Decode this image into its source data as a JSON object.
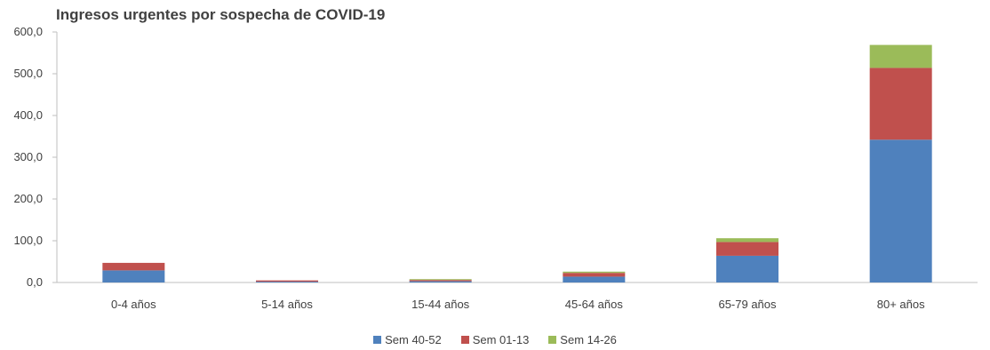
{
  "chart_data": {
    "type": "bar",
    "stacked": true,
    "title": "Ingresos urgentes por sospecha de COVID-19",
    "xlabel": "",
    "ylabel": "",
    "ylim": [
      0,
      600
    ],
    "yticks": [
      "0,0",
      "100,0",
      "200,0",
      "300,0",
      "400,0",
      "500,0",
      "600,0"
    ],
    "categories": [
      "0-4 años",
      "5-14 años",
      "15-44 años",
      "45-64 años",
      "65-79 años",
      "80+ años"
    ],
    "series": [
      {
        "name": "Sem 40-52",
        "color": "#4f81bd",
        "values": [
          29,
          2,
          3,
          14,
          64,
          342
        ]
      },
      {
        "name": "Sem 01-13",
        "color": "#c0504d",
        "values": [
          18,
          3,
          3,
          9,
          33,
          172
        ]
      },
      {
        "name": "Sem 14-26",
        "color": "#9bbb59",
        "values": [
          0,
          0,
          2,
          3,
          9,
          55
        ]
      }
    ],
    "grid": false,
    "legend_position": "bottom"
  }
}
